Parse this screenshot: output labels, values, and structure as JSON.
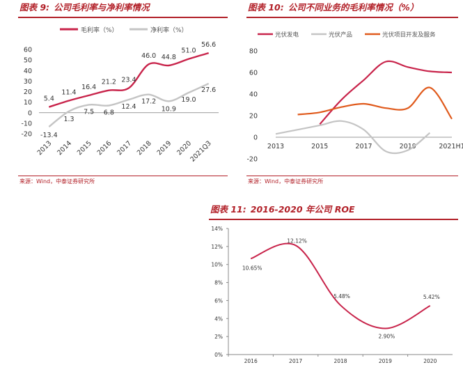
{
  "panels": [
    {
      "title_prefix": "图表 9:",
      "title": "公司毛利率与净利率情况",
      "source": "来源：Wind，中泰证券研究所"
    },
    {
      "title_prefix": "图表 10:",
      "title": "公司不同业务的毛利率情况（%）",
      "source": "来源：Wind，中泰证券研究所"
    },
    {
      "title_prefix": "图表 11:",
      "title": "2016-2020 年公司 ROE",
      "source": ""
    }
  ],
  "colors": {
    "red": "#c8234a",
    "gray": "#c4c4c4",
    "orange": "#e05a1c",
    "title": "#b22028"
  },
  "chart_data": [
    {
      "type": "line",
      "title": "公司毛利率与净利率情况",
      "categories": [
        "2013",
        "2014",
        "2015",
        "2016",
        "2017",
        "2018",
        "2019",
        "2020",
        "2021Q3"
      ],
      "y_ticks": [
        -20,
        -10,
        0,
        10,
        20,
        30,
        40,
        50,
        60
      ],
      "ylim": [
        -20,
        60
      ],
      "legend_position": "top",
      "series": [
        {
          "name": "毛利率（%）",
          "color": "#c8234a",
          "values": [
            5.4,
            11.4,
            16.4,
            21.2,
            23.4,
            46.0,
            44.8,
            51.0,
            56.6
          ],
          "labels": [
            "5.4",
            "11.4",
            "16.4",
            "21.2",
            "23.4",
            "46.0",
            "44.8",
            "51.0",
            "56.6"
          ]
        },
        {
          "name": "净利率（%）",
          "color": "#c4c4c4",
          "values": [
            -13.4,
            1.3,
            7.5,
            6.8,
            12.4,
            17.2,
            10.9,
            19.0,
            27.6
          ],
          "labels": [
            "-13.4",
            "1.3",
            "7.5",
            "6.8",
            "12.4",
            "17.2",
            "10.9",
            "19.0",
            "27.6"
          ]
        }
      ]
    },
    {
      "type": "line",
      "title": "公司不同业务的毛利率情况（%）",
      "x": [
        2013,
        2014,
        2015,
        2016,
        2017,
        2018,
        2019,
        2020,
        2021
      ],
      "x_tick_labels": [
        "2013",
        "2015",
        "2017",
        "2019",
        "2021H1"
      ],
      "y_ticks": [
        -20,
        0,
        20,
        40,
        60,
        80
      ],
      "ylim": [
        -20,
        80
      ],
      "legend_position": "top",
      "series": [
        {
          "name": "光伏发电",
          "color": "#c8234a",
          "x": [
            2015,
            2016,
            2017,
            2018,
            2019,
            2020,
            2021
          ],
          "values": [
            12,
            35,
            53,
            70,
            65,
            61,
            60
          ]
        },
        {
          "name": "光伏产品",
          "color": "#c4c4c4",
          "x": [
            2013,
            2014,
            2015,
            2016,
            2017,
            2018,
            2019,
            2020
          ],
          "values": [
            3,
            7,
            11,
            15,
            7,
            -13,
            -12,
            4
          ]
        },
        {
          "name": "光伏项目开发及服务",
          "color": "#e05a1c",
          "x": [
            2014,
            2015,
            2016,
            2017,
            2018,
            2019,
            2020,
            2021
          ],
          "values": [
            21,
            23,
            28,
            31,
            27,
            27,
            46,
            17
          ]
        }
      ]
    },
    {
      "type": "line",
      "title": "2016-2020 年公司 ROE",
      "categories": [
        "2016",
        "2017",
        "2018",
        "2019",
        "2020"
      ],
      "y_ticks": [
        "0%",
        "2%",
        "4%",
        "6%",
        "8%",
        "10%",
        "12%",
        "14%"
      ],
      "ylim": [
        0,
        14
      ],
      "series": [
        {
          "name": "",
          "color": "#c8234a",
          "values": [
            10.65,
            12.12,
            5.48,
            2.9,
            5.42
          ],
          "labels": [
            "10.65%",
            "12.12%",
            "5.48%",
            "2.90%",
            "5.42%"
          ]
        }
      ]
    }
  ]
}
